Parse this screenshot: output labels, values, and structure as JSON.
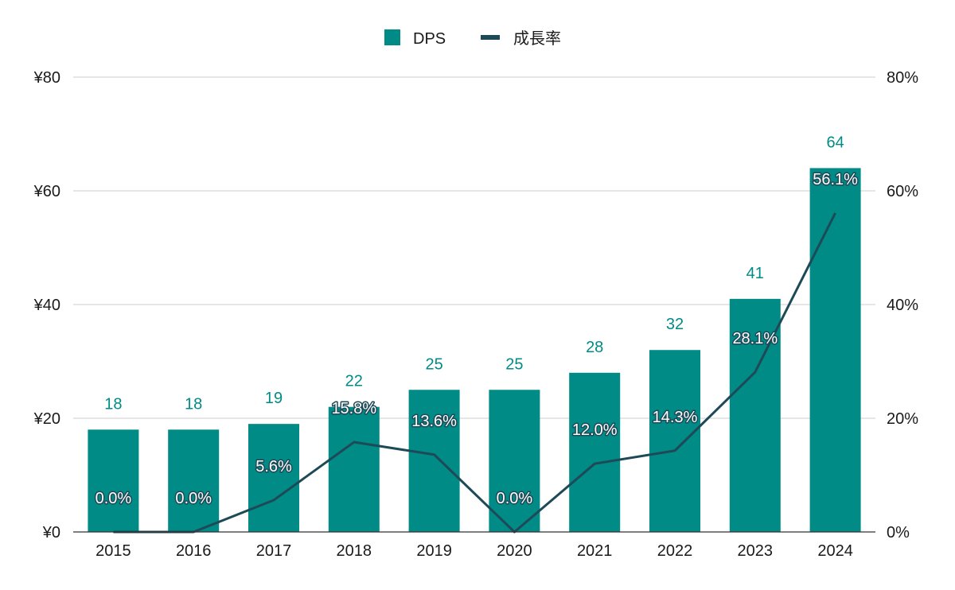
{
  "chart_data": {
    "type": "bar",
    "categories": [
      "2015",
      "2016",
      "2017",
      "2018",
      "2019",
      "2020",
      "2021",
      "2022",
      "2023",
      "2024"
    ],
    "series": [
      {
        "name": "DPS",
        "type": "bar",
        "axis": "left",
        "color": "#008b87",
        "values": [
          18,
          18,
          19,
          22,
          25,
          25,
          28,
          32,
          41,
          64
        ],
        "labels": [
          "18",
          "18",
          "19",
          "22",
          "25",
          "25",
          "28",
          "32",
          "41",
          "64"
        ]
      },
      {
        "name": "成長率",
        "type": "line",
        "axis": "right",
        "color": "#1e4a57",
        "values": [
          0.0,
          0.0,
          5.6,
          15.8,
          13.6,
          0.0,
          12.0,
          14.3,
          28.1,
          56.1
        ],
        "labels": [
          "0.0%",
          "0.0%",
          "5.6%",
          "15.8%",
          "13.6%",
          "0.0%",
          "12.0%",
          "14.3%",
          "28.1%",
          "56.1%"
        ]
      }
    ],
    "y_left": {
      "range": [
        0,
        80
      ],
      "ticks": [
        0,
        20,
        40,
        60,
        80
      ],
      "tick_labels": [
        "¥0",
        "¥20",
        "¥40",
        "¥60",
        "¥80"
      ]
    },
    "y_right": {
      "range": [
        0,
        80
      ],
      "ticks": [
        0,
        20,
        40,
        60,
        80
      ],
      "tick_labels": [
        "0%",
        "20%",
        "40%",
        "60%",
        "80%"
      ]
    },
    "grid": true,
    "legend": {
      "position": "top-center",
      "items": [
        "DPS",
        "成長率"
      ]
    }
  }
}
